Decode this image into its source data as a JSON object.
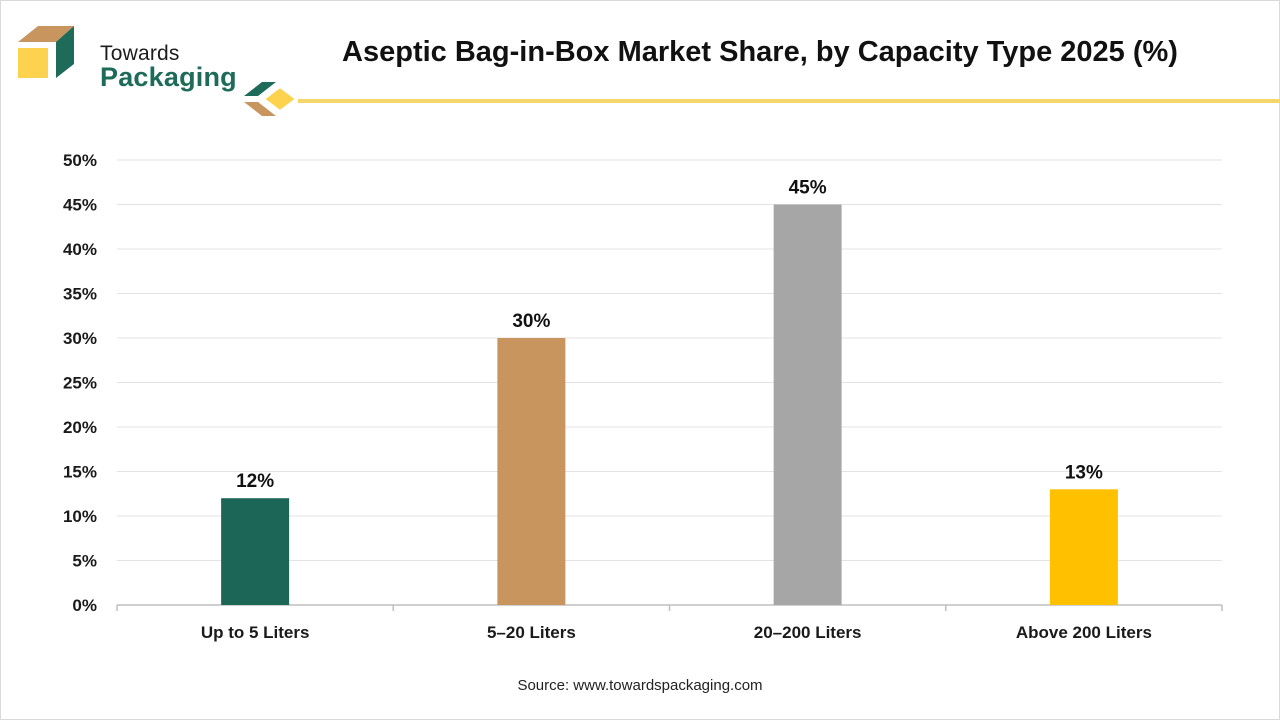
{
  "brand": {
    "name_line1": "Towards",
    "name_line2": "Packaging",
    "colors": {
      "green": "#1d6b58",
      "tan": "#c8955f",
      "yellow": "#fdd24e"
    }
  },
  "header": {
    "title": "Aseptic Bag-in-Box Market Share, by Capacity Type 2025 (%)",
    "accent_color": "#f5d66b"
  },
  "chart_data": {
    "type": "bar",
    "title": "Aseptic Bag-in-Box Market Share, by Capacity Type 2025 (%)",
    "xlabel": "",
    "ylabel": "",
    "categories": [
      "Up to 5 Liters",
      "5–20 Liters",
      "20–200 Liters",
      "Above 200 Liters"
    ],
    "values": [
      12,
      30,
      45,
      13
    ],
    "data_labels": [
      "12%",
      "30%",
      "45%",
      "13%"
    ],
    "bar_colors": [
      "#1b6656",
      "#c8955f",
      "#a6a6a6",
      "#ffc000"
    ],
    "ylim": [
      0,
      50
    ],
    "yticks": [
      0,
      5,
      10,
      15,
      20,
      25,
      30,
      35,
      40,
      45,
      50
    ],
    "ytick_labels": [
      "0%",
      "5%",
      "10%",
      "15%",
      "20%",
      "25%",
      "30%",
      "35%",
      "40%",
      "45%",
      "50%"
    ],
    "grid": true,
    "legend": "none"
  },
  "footer": {
    "source": "Source: www.towardspackaging.com"
  }
}
